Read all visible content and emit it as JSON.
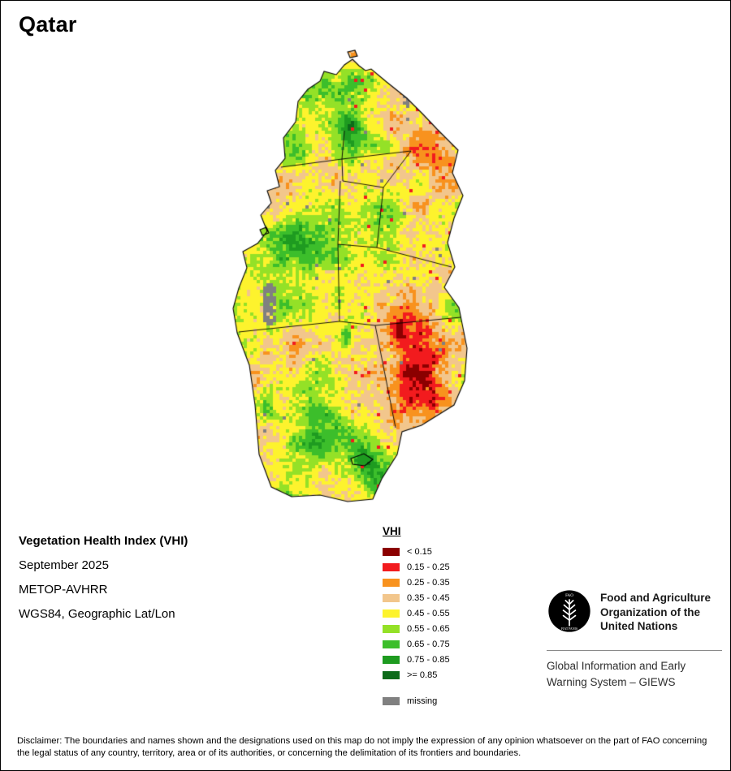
{
  "title": "Qatar",
  "map": {
    "legend_title": "VHI",
    "classes": [
      {
        "label": "< 0.15",
        "color": "#8B0000"
      },
      {
        "label": "0.15 - 0.25",
        "color": "#F21B1E"
      },
      {
        "label": "0.25 - 0.35",
        "color": "#F8921E"
      },
      {
        "label": "0.35 - 0.45",
        "color": "#F2C68C"
      },
      {
        "label": "0.45 - 0.55",
        "color": "#FDF32D"
      },
      {
        "label": "0.55 - 0.65",
        "color": "#94E127"
      },
      {
        "label": "0.65 - 0.75",
        "color": "#3CBE2B"
      },
      {
        "label": "0.75 - 0.85",
        "color": "#1E9B20"
      },
      {
        "label": ">= 0.85",
        "color": "#0D6B1A"
      }
    ],
    "missing": {
      "label": "missing",
      "color": "#808080"
    },
    "boundary_color": "#000000"
  },
  "info": {
    "product": "Vegetation Health Index (VHI)",
    "date": "September 2025",
    "sensor": "METOP-AVHRR",
    "projection": "WGS84, Geographic Lat/Lon"
  },
  "footer": {
    "fao_name_lines": [
      "Food and Agriculture",
      "Organization of the",
      "United Nations"
    ],
    "giews_lines": [
      "Global Information and Early",
      "Warning System – GIEWS"
    ]
  },
  "disclaimer": "Disclaimer: The boundaries and names shown and the designations used on this map do not imply the expression of any opinion whatsoever on the part of FAO concerning the legal status of any country, territory, area or of its authorities, or concerning the delimitation of its frontiers and boundaries."
}
